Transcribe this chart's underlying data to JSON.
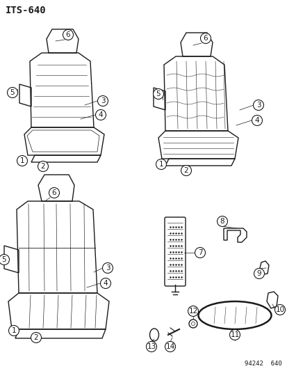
{
  "title": "ITS-640",
  "footer": "94242  640",
  "bg_color": "#ffffff",
  "line_color": "#1a1a1a",
  "label_fontsize": 7.5,
  "title_fontsize": 10
}
